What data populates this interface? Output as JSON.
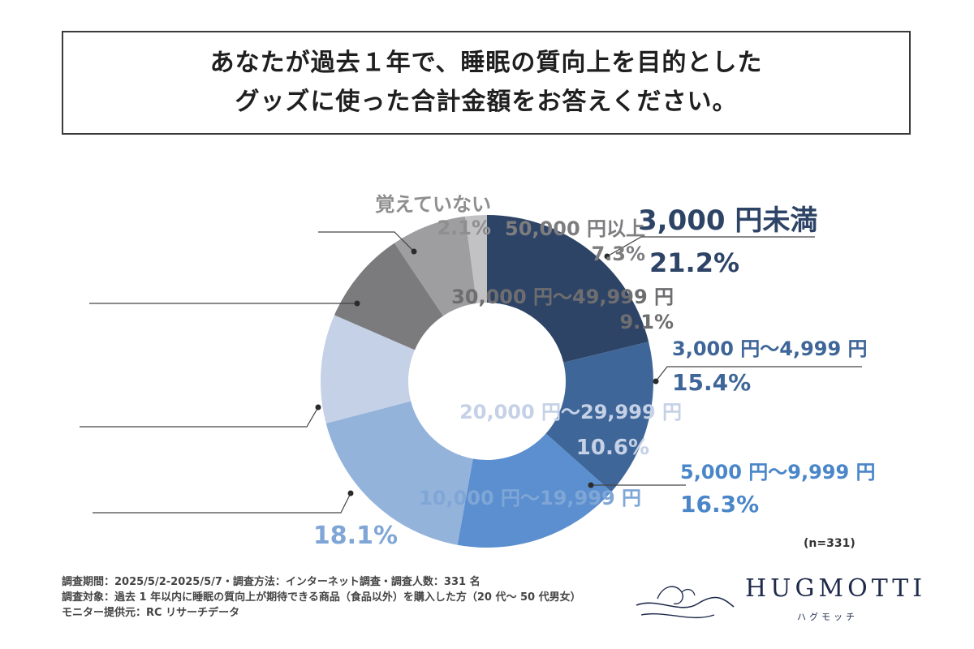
{
  "title": {
    "line1": "あなたが過去１年で、睡眠の質向上を目的とした",
    "line2": "グッズに使った合計金額をお答えください。"
  },
  "chart_data": {
    "type": "pie",
    "donut": true,
    "categories": [
      "3,000 円未満",
      "3,000 円〜4,999 円",
      "5,000 円〜9,999 円",
      "10,000 円〜19,999 円",
      "20,000 円〜29,999 円",
      "30,000 円〜49,999 円",
      "50,000 円以上",
      "覚えていない"
    ],
    "values": [
      21.2,
      15.4,
      16.3,
      18.1,
      10.6,
      9.1,
      7.3,
      2.1
    ],
    "value_labels": [
      "21.2%",
      "15.4%",
      "16.3%",
      "18.1%",
      "10.6%",
      "9.1%",
      "7.3%",
      "2.1%"
    ],
    "colors": [
      "#2e4466",
      "#3f6698",
      "#5b8fcf",
      "#93b3db",
      "#c5d1e6",
      "#7b7b7e",
      "#9e9ea1",
      "#c2c2c4"
    ],
    "label_colors": [
      "#2e4466",
      "#3f6698",
      "#4a86c8",
      "#7fa6d6",
      "#c5d1e6",
      "#6e6e70",
      "#7d7d80",
      "#8e8e90"
    ],
    "n_label": "(n=331)"
  },
  "footer": {
    "line1": "調査期間：2025/5/2-2025/5/7・調査方法：インターネット調査・調査人数：331 名",
    "line2": "調査対象：過去 1 年以内に睡眠の質向上が期待できる商品（食品以外）を購入した方（20 代〜 50 代男女）",
    "line3": "モニター提供元：RC リサーチデータ"
  },
  "logo": {
    "name": "HUGMOTTI",
    "sub": "ハグモッチ"
  }
}
